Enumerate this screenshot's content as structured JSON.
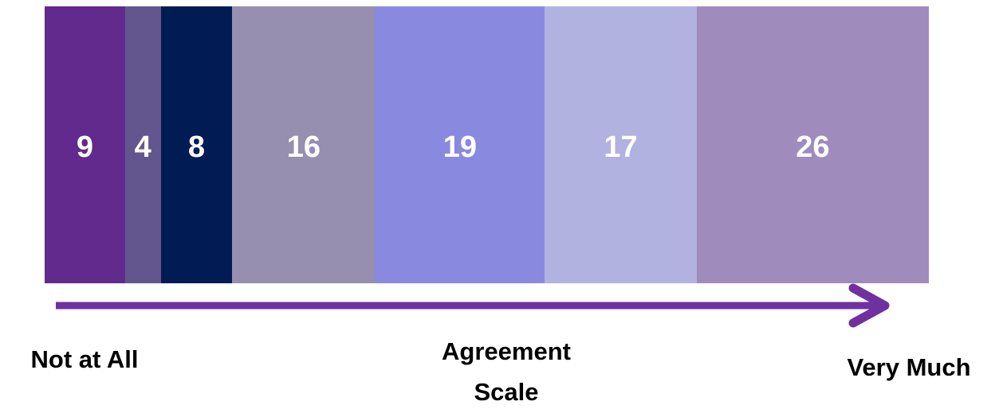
{
  "chart_data": {
    "type": "stacked_bar",
    "orientation": "horizontal",
    "values": [
      9,
      4,
      8,
      16,
      19,
      17,
      26
    ],
    "colors": [
      "#622a8c",
      "#63568f",
      "#011b54",
      "#968fb0",
      "#8a89e0",
      "#b2b2e0",
      "#a08bbd"
    ],
    "arrow_color": "#7030a0",
    "start_label": "Not at All",
    "axis_label": "Agreement Scale",
    "end_label": "Very Much"
  }
}
